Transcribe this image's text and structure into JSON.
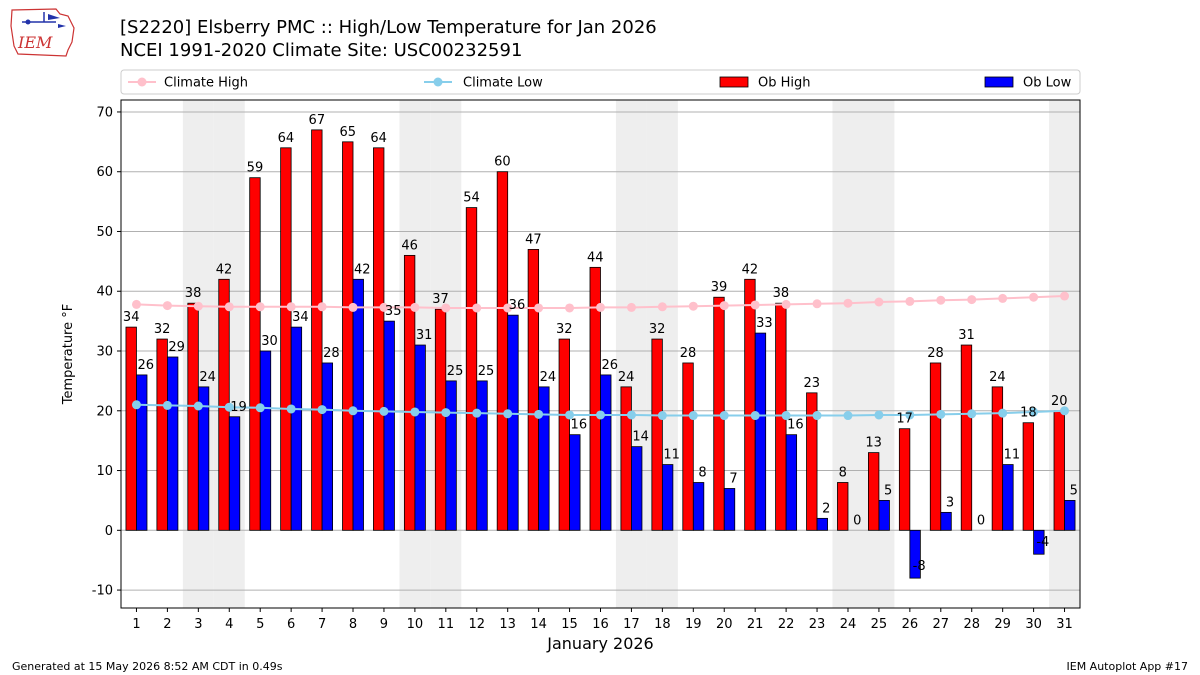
{
  "header": {
    "title_line1": "[S2220] Elsberry PMC :: High/Low Temperature for Jan 2026",
    "title_line2": "NCEI 1991-2020 Climate Site: USC00232591",
    "logo_text": "IEM"
  },
  "footer": {
    "generated": "Generated at 15 May 2026 8:52 AM CDT in 0.49s",
    "app": "IEM Autoplot App #17"
  },
  "colors": {
    "ob_high": "#ff0000",
    "ob_low": "#0000ff",
    "climate_high": "#ffc0cb",
    "climate_low": "#87ceeb",
    "weekend_band": "#eeeeee",
    "grid": "#b0b0b0"
  },
  "chart_data": {
    "type": "bar",
    "title": "[S2220] Elsberry PMC :: High/Low Temperature for Jan 2026",
    "xlabel": "January 2026",
    "ylabel": "Temperature °F",
    "ylim": [
      -13,
      72
    ],
    "yticks": [
      -10,
      0,
      10,
      20,
      30,
      40,
      50,
      60,
      70
    ],
    "grid": true,
    "legend_position": "top",
    "categories": [
      "1",
      "2",
      "3",
      "4",
      "5",
      "6",
      "7",
      "8",
      "9",
      "10",
      "11",
      "12",
      "13",
      "14",
      "15",
      "16",
      "17",
      "18",
      "19",
      "20",
      "21",
      "22",
      "23",
      "24",
      "25",
      "26",
      "27",
      "28",
      "29",
      "30",
      "31"
    ],
    "shaded_days": [
      3,
      4,
      10,
      11,
      17,
      18,
      24,
      25,
      31
    ],
    "series": [
      {
        "name": "Ob High",
        "kind": "bar",
        "values": [
          34,
          32,
          38,
          42,
          59,
          64,
          67,
          65,
          64,
          46,
          37,
          54,
          60,
          47,
          32,
          44,
          24,
          32,
          28,
          39,
          42,
          38,
          23,
          8,
          13,
          17,
          28,
          31,
          24,
          18,
          20
        ]
      },
      {
        "name": "Ob Low",
        "kind": "bar",
        "values": [
          26,
          29,
          24,
          19,
          30,
          34,
          28,
          42,
          35,
          31,
          25,
          25,
          36,
          24,
          16,
          26,
          14,
          11,
          8,
          7,
          33,
          16,
          2,
          0,
          5,
          -8,
          3,
          0,
          11,
          -4,
          5
        ]
      },
      {
        "name": "Climate High",
        "kind": "line",
        "values": [
          37.8,
          37.6,
          37.5,
          37.4,
          37.4,
          37.4,
          37.4,
          37.3,
          37.3,
          37.3,
          37.2,
          37.2,
          37.2,
          37.2,
          37.2,
          37.3,
          37.3,
          37.4,
          37.5,
          37.6,
          37.7,
          37.8,
          37.9,
          38.0,
          38.2,
          38.3,
          38.5,
          38.6,
          38.8,
          39.0,
          39.2
        ]
      },
      {
        "name": "Climate Low",
        "kind": "line",
        "values": [
          21.0,
          20.9,
          20.8,
          20.6,
          20.5,
          20.3,
          20.2,
          20.0,
          19.9,
          19.8,
          19.7,
          19.6,
          19.5,
          19.4,
          19.3,
          19.3,
          19.3,
          19.2,
          19.2,
          19.2,
          19.2,
          19.2,
          19.2,
          19.2,
          19.3,
          19.3,
          19.4,
          19.5,
          19.6,
          19.8,
          20.0
        ]
      }
    ]
  }
}
